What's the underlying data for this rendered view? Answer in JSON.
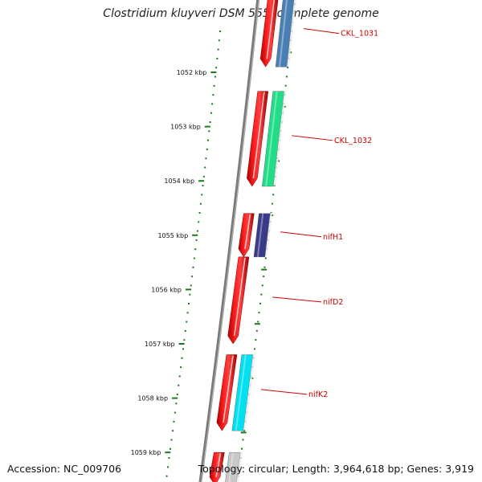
{
  "title": "Clostridium kluyveri DSM 555, complete genome",
  "accession": "Accession: NC_009706",
  "summary": "Topology: circular; Length: 3,964,618 bp; Genes: 3,919",
  "ruler": {
    "ticks": [
      {
        "label": "1052 kbp",
        "kbp": 1052
      },
      {
        "label": "1053 kbp",
        "kbp": 1053
      },
      {
        "label": "1054 kbp",
        "kbp": 1054
      },
      {
        "label": "1055 kbp",
        "kbp": 1055
      },
      {
        "label": "1056 kbp",
        "kbp": 1056
      },
      {
        "label": "1057 kbp",
        "kbp": 1057
      },
      {
        "label": "1058 kbp",
        "kbp": 1058
      },
      {
        "label": "1059 kbp",
        "kbp": 1059
      }
    ],
    "color": "#1a7a1a"
  },
  "genes": [
    {
      "name": "CKL_1031",
      "start_kbp": 1050.6,
      "end_kbp": 1051.9,
      "feature_color": "#4a7fb5"
    },
    {
      "name": "CKL_1032",
      "start_kbp": 1052.35,
      "end_kbp": 1054.1,
      "feature_color": "#22dd88"
    },
    {
      "name": "nifH1",
      "start_kbp": 1054.6,
      "end_kbp": 1055.4,
      "feature_color": "#3a3a8a"
    },
    {
      "name": "nifD2",
      "start_kbp": 1055.4,
      "end_kbp": 1057.0,
      "feature_color": ""
    },
    {
      "name": "nifK2",
      "start_kbp": 1057.2,
      "end_kbp": 1058.6,
      "feature_color": "#00e0f0"
    },
    {
      "name": "",
      "start_kbp": 1059.0,
      "end_kbp": 1059.6,
      "feature_color": "#c8c8c8"
    }
  ],
  "colors": {
    "cds": "#ee0000",
    "label": "#cc0000",
    "backbone": "#7a7a7a"
  }
}
